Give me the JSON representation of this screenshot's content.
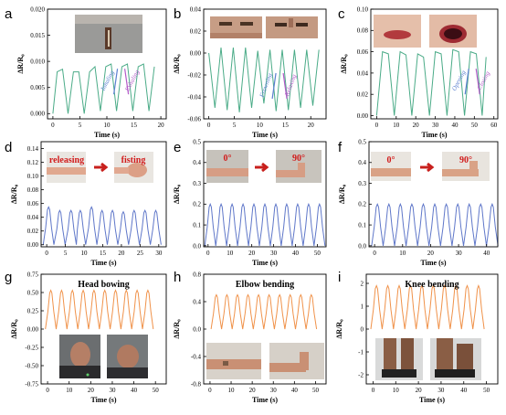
{
  "colors": {
    "green": "#4aab87",
    "blue": "#5f77c9",
    "orange": "#f0924a",
    "arrow_red": "#c8201d",
    "ann_blue": "#5b7fd0",
    "ann_purple": "#b35ac8"
  },
  "chart_data": [
    {
      "panel": "a",
      "type": "line",
      "color": "green",
      "ylabel": "ΔR/R₀",
      "xlabel": "Time (s)",
      "xlim": [
        -1,
        21
      ],
      "ylim": [
        -0.001,
        0.02
      ],
      "xticks": [
        "0",
        "5",
        "10",
        "15",
        "20"
      ],
      "yticks": [
        "0.000",
        "0.005",
        "0.010",
        "0.015",
        "0.020"
      ],
      "x": [
        0.0,
        0.8,
        1.8,
        2.8,
        3.8,
        4.8,
        5.8,
        6.8,
        7.8,
        8.8,
        9.8,
        10.8,
        11.8,
        12.8,
        13.8,
        14.8,
        15.8,
        16.8,
        17.8,
        18.8
      ],
      "y": [
        0.0,
        0.008,
        0.0085,
        0.0,
        0.008,
        0.008,
        0.0,
        0.008,
        0.009,
        0.0005,
        0.009,
        0.0095,
        0.0005,
        0.009,
        0.0095,
        0.0005,
        0.009,
        0.0095,
        0.0005,
        0.009
      ],
      "annotations": [
        {
          "text": "Inhaling",
          "color": "ann_blue"
        },
        {
          "text": "Exhaling",
          "color": "ann_purple"
        }
      ]
    },
    {
      "panel": "b",
      "type": "line",
      "color": "green",
      "ylabel": "ΔR/R₀",
      "xlabel": "Time (s)",
      "xlim": [
        -1,
        23
      ],
      "ylim": [
        -0.06,
        0.04
      ],
      "xticks": [
        "0",
        "5",
        "10",
        "15",
        "20"
      ],
      "yticks": [
        "-0.06",
        "-0.04",
        "-0.02",
        "0.00",
        "0.02",
        "0.04"
      ],
      "x": [
        0.0,
        1.2,
        2.4,
        3.6,
        4.8,
        6.0,
        7.2,
        8.4,
        9.6,
        10.8,
        12.0,
        13.2,
        14.4,
        15.6,
        16.8,
        18.0,
        19.2,
        20.4,
        21.6
      ],
      "y": [
        0.0,
        -0.05,
        0.005,
        -0.052,
        0.005,
        -0.054,
        0.005,
        -0.05,
        0.002,
        -0.046,
        0.003,
        -0.053,
        0.003,
        -0.052,
        0.003,
        -0.05,
        0.003,
        -0.048,
        0.003
      ],
      "annotations": [
        {
          "text": "Frowning",
          "color": "ann_blue"
        },
        {
          "text": "Relaxing",
          "color": "ann_purple"
        }
      ]
    },
    {
      "panel": "c",
      "type": "line",
      "color": "green",
      "ylabel": "ΔR/R₀",
      "xlabel": "Time (s)",
      "xlim": [
        -3,
        62
      ],
      "ylim": [
        -0.003,
        0.1
      ],
      "xticks": [
        "0",
        "10",
        "20",
        "30",
        "40",
        "50",
        "60"
      ],
      "yticks": [
        "0.00",
        "0.02",
        "0.04",
        "0.06",
        "0.08",
        "0.10"
      ],
      "x": [
        0,
        3,
        6,
        9,
        12,
        15,
        18,
        21,
        24,
        27,
        30,
        33,
        36,
        39,
        42,
        45,
        48,
        51,
        54,
        56
      ],
      "y": [
        0.0,
        0.06,
        0.058,
        0.0,
        0.06,
        0.057,
        0.0,
        0.058,
        0.055,
        0.0,
        0.06,
        0.058,
        0.0,
        0.062,
        0.06,
        0.0,
        0.06,
        0.058,
        0.0,
        0.055
      ],
      "annotations": [
        {
          "text": "Opening",
          "color": "ann_blue"
        },
        {
          "text": "Closing",
          "color": "ann_purple"
        }
      ]
    },
    {
      "panel": "d",
      "type": "line",
      "color": "blue",
      "ylabel": "ΔR/R₀",
      "xlabel": "Time (s)",
      "xlim": [
        -1.5,
        32
      ],
      "ylim": [
        -0.003,
        0.15
      ],
      "xticks": [
        "0",
        "5",
        "10",
        "15",
        "20",
        "25",
        "30"
      ],
      "yticks": [
        "0.00",
        "0.02",
        "0.04",
        "0.06",
        "0.08",
        "0.10",
        "0.12",
        "0.14"
      ],
      "peak_times": [
        0.5,
        3.5,
        6.5,
        9.0,
        12.0,
        14.8,
        17.6,
        20.5,
        23.4,
        26.3,
        29.2
      ],
      "peak_values": [
        0.055,
        0.05,
        0.05,
        0.05,
        0.055,
        0.05,
        0.05,
        0.048,
        0.05,
        0.05,
        0.05
      ],
      "photo_labels": [
        "releasing",
        "fisting"
      ]
    },
    {
      "panel": "e",
      "type": "line",
      "color": "blue",
      "ylabel": "ΔR/R₀",
      "xlabel": "Time (s)",
      "xlim": [
        -2,
        54
      ],
      "ylim": [
        -0.005,
        0.5
      ],
      "xticks": [
        "0",
        "10",
        "20",
        "30",
        "40",
        "50"
      ],
      "yticks": [
        "0.0",
        "0.1",
        "0.2",
        "0.3",
        "0.4",
        "0.5"
      ],
      "peak_times": [
        1,
        6,
        11,
        16,
        21,
        26,
        31,
        36,
        41,
        46,
        51
      ],
      "peak_values": [
        0.2,
        0.2,
        0.2,
        0.2,
        0.2,
        0.2,
        0.2,
        0.2,
        0.2,
        0.2,
        0.2
      ],
      "photo_labels": [
        "0°",
        "90°"
      ]
    },
    {
      "panel": "f",
      "type": "line",
      "color": "blue",
      "ylabel": "ΔR/R₀",
      "xlabel": "Time (s)",
      "xlim": [
        -2,
        44
      ],
      "ylim": [
        -0.005,
        0.5
      ],
      "xticks": [
        "0",
        "10",
        "20",
        "30",
        "40"
      ],
      "yticks": [
        "0.0",
        "0.1",
        "0.2",
        "0.3",
        "0.4",
        "0.5"
      ],
      "peak_times": [
        1.0,
        5.1,
        9.2,
        13.3,
        17.4,
        21.5,
        25.6,
        29.7,
        33.8,
        37.9,
        42.0
      ],
      "peak_values": [
        0.2,
        0.2,
        0.2,
        0.2,
        0.2,
        0.2,
        0.2,
        0.2,
        0.2,
        0.2,
        0.2
      ],
      "photo_labels": [
        "0°",
        "90°"
      ]
    },
    {
      "panel": "g",
      "type": "line",
      "color": "orange",
      "title": "Head bowing",
      "ylabel": "ΔR/R₀",
      "xlabel": "Time (s)",
      "xlim": [
        -3,
        55
      ],
      "ylim": [
        -0.75,
        0.75
      ],
      "xticks": [
        "0",
        "10",
        "20",
        "30",
        "40",
        "50"
      ],
      "yticks": [
        "-0.75",
        "-0.50",
        "-0.25",
        "0.00",
        "0.25",
        "0.50",
        "0.75"
      ],
      "peak_times": [
        1.5,
        6.5,
        11.5,
        16.5,
        21.5,
        26.5,
        31.5,
        36.5,
        41.5,
        46.5
      ],
      "peak_values": [
        0.53,
        0.53,
        0.53,
        0.53,
        0.53,
        0.53,
        0.53,
        0.53,
        0.53,
        0.53
      ]
    },
    {
      "panel": "h",
      "type": "line",
      "color": "orange",
      "title": "Elbow bending",
      "ylabel": "ΔR/R₀",
      "xlabel": "Time (s)",
      "xlim": [
        -3,
        55
      ],
      "ylim": [
        -0.8,
        0.8
      ],
      "xticks": [
        "0",
        "10",
        "20",
        "30",
        "40",
        "50"
      ],
      "yticks": [
        "-0.8",
        "-0.4",
        "0.0",
        "0.4",
        "0.8"
      ],
      "peak_times": [
        3,
        8,
        13,
        18,
        23,
        28,
        33,
        38,
        43,
        48
      ],
      "peak_values": [
        0.5,
        0.5,
        0.5,
        0.5,
        0.5,
        0.5,
        0.5,
        0.5,
        0.5,
        0.5
      ]
    },
    {
      "panel": "i",
      "type": "line",
      "color": "orange",
      "title": "Knee bending",
      "ylabel": "ΔR/R₀",
      "xlabel": "Time (s)",
      "xlim": [
        -3,
        55
      ],
      "ylim": [
        -2.4,
        2.4
      ],
      "xticks": [
        "0",
        "10",
        "20",
        "30",
        "40",
        "50"
      ],
      "yticks": [
        "-2",
        "-1",
        "0",
        "1",
        "2"
      ],
      "peak_times": [
        1.5,
        6.5,
        11.5,
        16.5,
        21.5,
        26.5,
        31.5,
        36.5,
        41.5,
        46.5
      ],
      "peak_values": [
        1.9,
        1.9,
        1.9,
        1.9,
        1.9,
        1.9,
        1.9,
        1.9,
        1.9,
        1.9
      ]
    }
  ]
}
